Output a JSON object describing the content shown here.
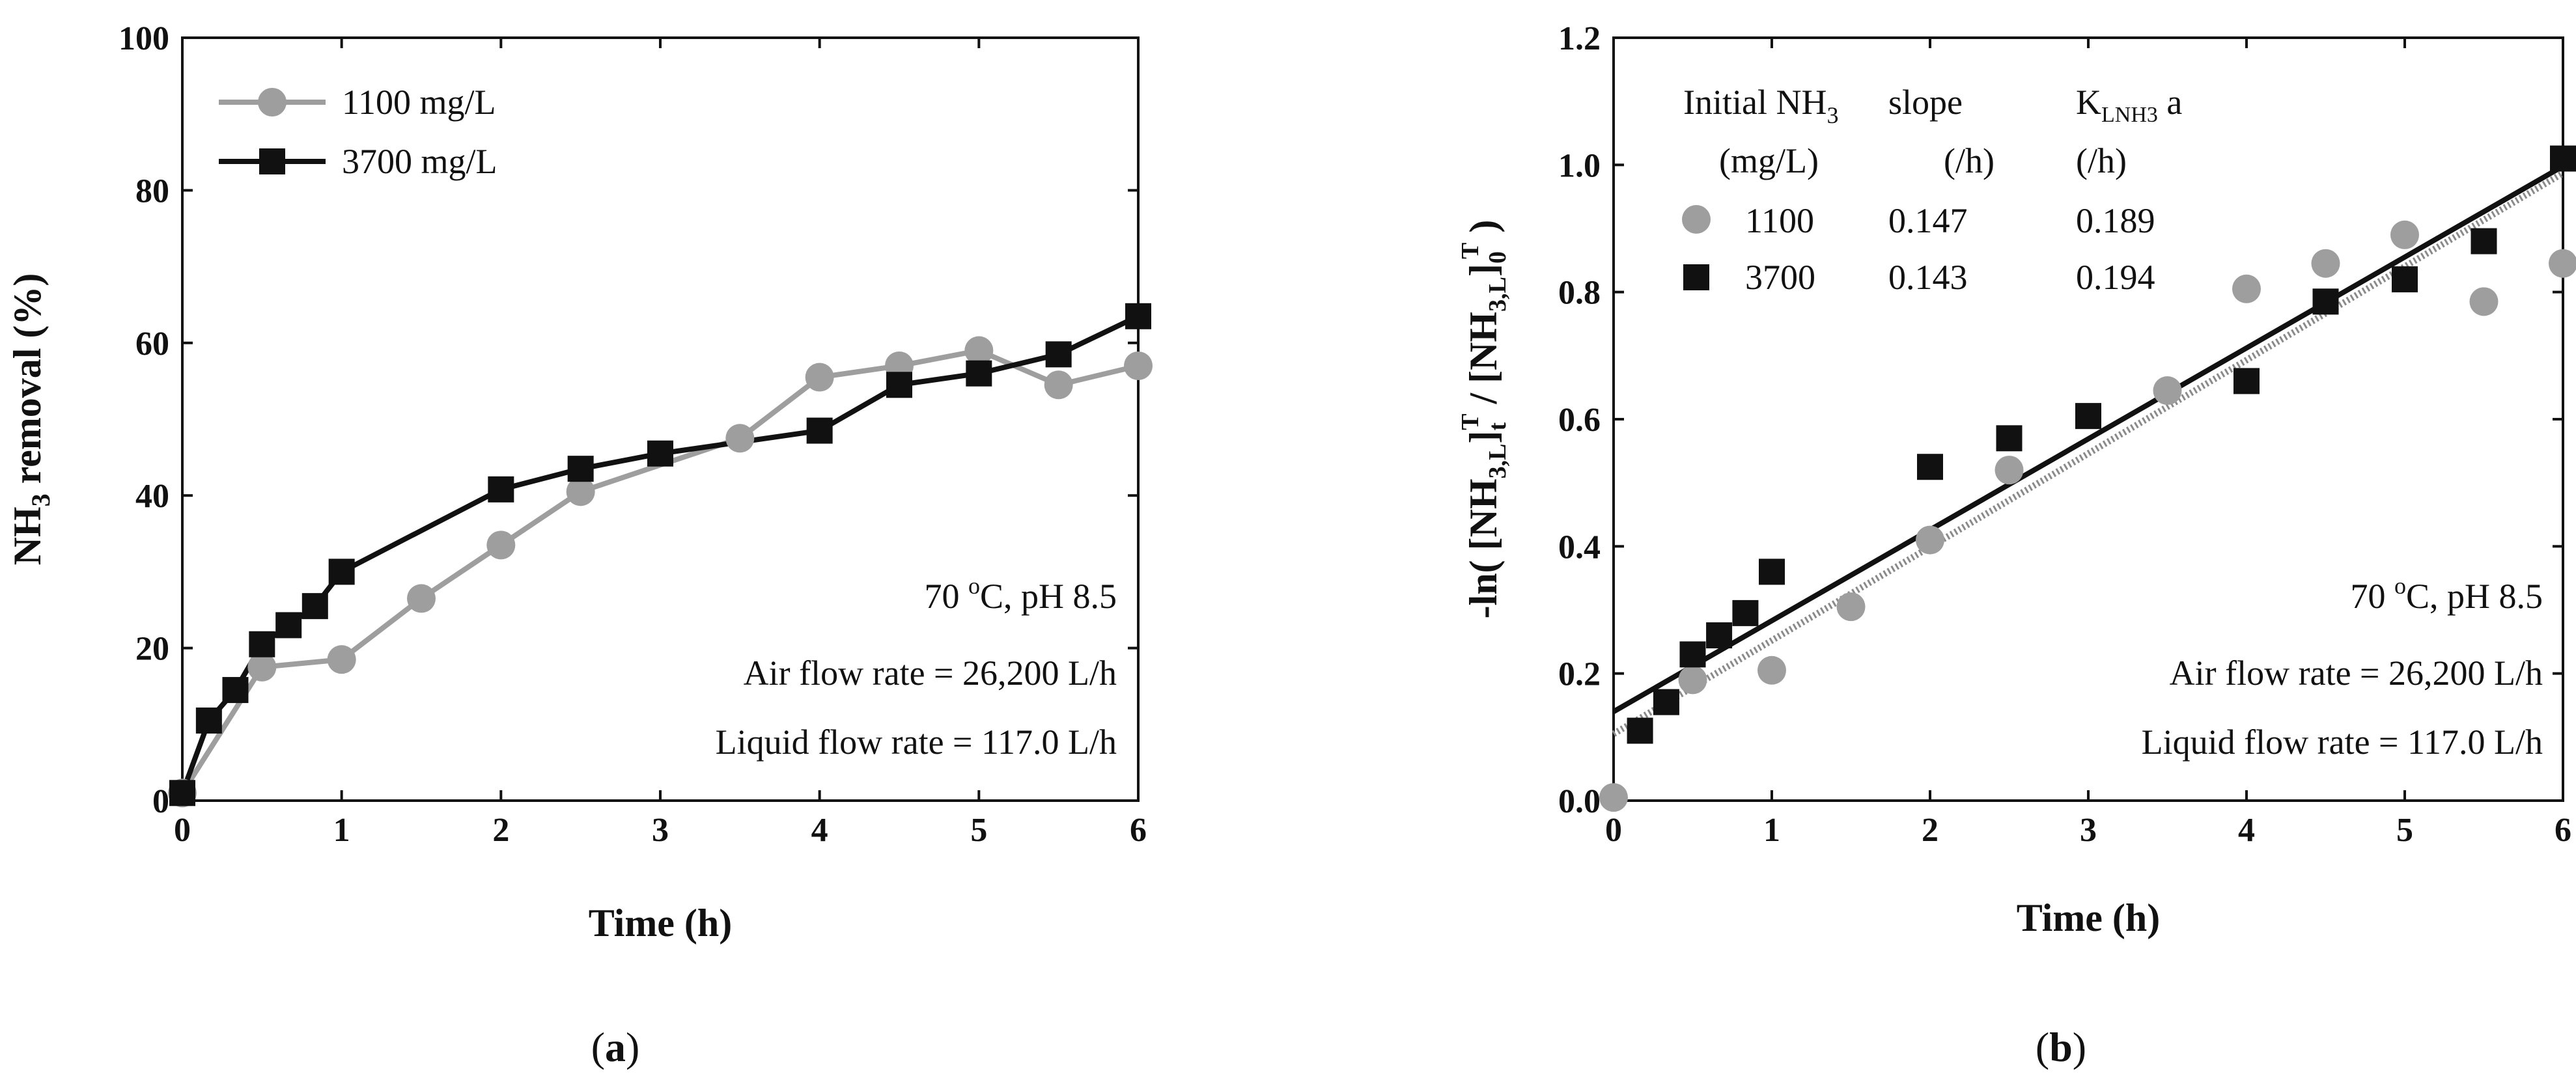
{
  "panels": {
    "a_label": "a",
    "b_label": "b"
  },
  "chart_data": [
    {
      "type": "line",
      "panel": "a",
      "xlabel": "Time (h)",
      "ylabel_main": "NH",
      "ylabel_sub": "3",
      "ylabel_rest": " removal (%)",
      "xlim": [
        0,
        6
      ],
      "ylim": [
        0,
        100
      ],
      "xticks": [
        0,
        1,
        2,
        3,
        4,
        5,
        6
      ],
      "yticks": [
        0,
        20,
        40,
        60,
        80,
        100
      ],
      "legend_position": "top-left",
      "series": [
        {
          "name": "1100 mg/L",
          "color": "#9e9e9e",
          "marker": "circle",
          "x": [
            0,
            0.5,
            1,
            1.5,
            2,
            2.5,
            3.5,
            4,
            4.5,
            5,
            5.5,
            6
          ],
          "y": [
            1,
            17.5,
            18.5,
            26.5,
            33.5,
            40.5,
            47.5,
            55.5,
            57,
            59,
            54.5,
            57
          ]
        },
        {
          "name": "3700 mg/L",
          "color": "#111111",
          "marker": "square",
          "x": [
            0,
            0.167,
            0.333,
            0.5,
            0.667,
            0.833,
            1,
            2,
            2.5,
            3,
            4,
            4.5,
            5,
            5.5,
            6
          ],
          "y": [
            1,
            10.5,
            14.5,
            20.5,
            23,
            25.5,
            30,
            40.8,
            43.5,
            45.5,
            48.5,
            54.5,
            56,
            58.5,
            63.5
          ]
        }
      ],
      "annotations": {
        "temp_pre": "70 ",
        "temp_sup": "o",
        "temp_post": "C, pH 8.5",
        "air": "Air flow rate = 26,200 L/h",
        "liquid": "Liquid flow rate = 117.0 L/h"
      }
    },
    {
      "type": "scatter",
      "panel": "b",
      "xlabel": "Time (h)",
      "ylabel": {
        "a": "-ln( [NH",
        "b": "3,L",
        "c": "]",
        "d": "t",
        "e": "T",
        "f": " / [NH",
        "g": "3,L",
        "h": "]",
        "i": "0",
        "j": "T",
        "k": " )"
      },
      "xlim": [
        0,
        6
      ],
      "ylim": [
        0,
        1.2
      ],
      "xticks": [
        0,
        1,
        2,
        3,
        4,
        5,
        6
      ],
      "yticks": [
        0.0,
        0.2,
        0.4,
        0.6,
        0.8,
        1.0,
        1.2
      ],
      "ytick_labels": [
        "0.0",
        "0.2",
        "0.4",
        "0.6",
        "0.8",
        "1.0",
        "1.2"
      ],
      "legend_position": "top-left",
      "legend_header": {
        "col1_line1": "Initial NH",
        "col1_line1_sub": "3",
        "col1_line2": "(mg/L)",
        "col2_line1": "slope",
        "col2_line2": "(/h)",
        "col3_line1_pre": "K",
        "col3_line1_sub": "LNH3",
        "col3_line1_post": " a",
        "col3_line2": "(/h)"
      },
      "series": [
        {
          "name": "1100",
          "slope": "0.147",
          "kla": "0.189",
          "color": "#9e9e9e",
          "marker": "circle",
          "x": [
            0,
            0.5,
            1,
            1.5,
            2,
            2.5,
            3.5,
            4,
            4.5,
            5,
            5.5,
            6
          ],
          "y": [
            0.005,
            0.19,
            0.205,
            0.305,
            0.41,
            0.52,
            0.645,
            0.805,
            0.845,
            0.89,
            0.785,
            0.845
          ],
          "fit": {
            "intercept": 0.105,
            "slope": 0.147,
            "style": "dotted"
          }
        },
        {
          "name": "3700",
          "slope": "0.143",
          "kla": "0.194",
          "color": "#111111",
          "marker": "square",
          "x": [
            0.167,
            0.333,
            0.5,
            0.667,
            0.833,
            1,
            2,
            2.5,
            3,
            4,
            4.5,
            5,
            5.5,
            6
          ],
          "y": [
            0.11,
            0.155,
            0.23,
            0.26,
            0.295,
            0.36,
            0.525,
            0.57,
            0.605,
            0.66,
            0.785,
            0.82,
            0.88,
            1.01
          ],
          "fit": {
            "intercept": 0.14,
            "slope": 0.143,
            "style": "solid"
          }
        }
      ],
      "annotations": {
        "temp_pre": "70 ",
        "temp_sup": "o",
        "temp_post": "C, pH 8.5",
        "air": "Air flow rate = 26,200 L/h",
        "liquid": "Liquid flow rate = 117.0 L/h"
      }
    }
  ]
}
